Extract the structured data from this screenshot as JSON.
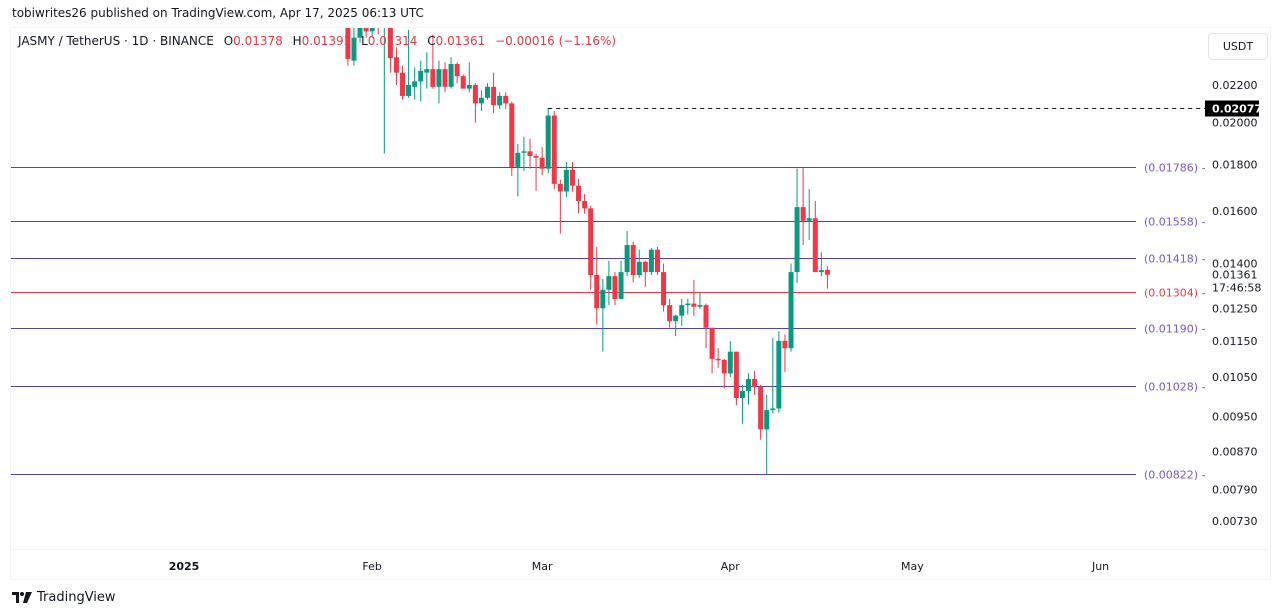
{
  "publisher_line": "tobiwrites26 published on TradingView.com, Apr 17, 2025 06:13 UTC",
  "legend": {
    "symbol": "JASMY / TetherUS · 1D · BINANCE",
    "o_label": "O",
    "o_value": "0.01378",
    "h_label": "H",
    "h_value": "0.01391",
    "l_label": "L",
    "l_value": "0.01314",
    "c_label": "C",
    "c_value": "0.01361",
    "change": "−0.00016 (−1.16%)"
  },
  "currency": "USDT",
  "footer_brand": "TradingView",
  "colors": {
    "up": "#089981",
    "down": "#f23645",
    "level_purple": "#5b3fb8",
    "level_label_purple": "#7e57c2",
    "level_red": "#f23645"
  },
  "chart_data": {
    "type": "candlestick",
    "scale": "log",
    "ylim": [
      0.0066,
      0.0255
    ],
    "price_ticks": [
      "0.02200",
      "0.02000",
      "0.01800",
      "0.01600",
      "0.01400",
      "0.01250",
      "0.01150",
      "0.01050",
      "0.00950",
      "0.00870",
      "0.00790",
      "0.00730"
    ],
    "time_ticks": [
      {
        "label": "2025",
        "day_of_year": 0
      },
      {
        "label": "Feb",
        "day_of_year": 31
      },
      {
        "label": "Mar",
        "day_of_year": 59
      },
      {
        "label": "Apr",
        "day_of_year": 90
      },
      {
        "label": "May",
        "day_of_year": 120
      },
      {
        "label": "Jun",
        "day_of_year": 151
      }
    ],
    "first_candle_day_of_year": 27,
    "ohlc_fields": [
      "open",
      "high",
      "low",
      "close"
    ],
    "candles": [
      [
        0.0262,
        0.027,
        0.0231,
        0.0235
      ],
      [
        0.0234,
        0.026,
        0.0231,
        0.0248
      ],
      [
        0.0248,
        0.027,
        0.0245,
        0.0255
      ],
      [
        0.0255,
        0.027,
        0.0248,
        0.0252
      ],
      [
        0.0252,
        0.027,
        0.0248,
        0.0258
      ],
      [
        0.0258,
        0.027,
        0.025,
        0.0255
      ],
      [
        0.0255,
        0.027,
        0.0185,
        0.0262
      ],
      [
        0.0262,
        0.027,
        0.0227,
        0.02355
      ],
      [
        0.0236,
        0.0242,
        0.022,
        0.0227
      ],
      [
        0.0227,
        0.0231,
        0.0212,
        0.0214
      ],
      [
        0.0214,
        0.0253,
        0.0213,
        0.022
      ],
      [
        0.0219,
        0.023,
        0.0212,
        0.0222
      ],
      [
        0.0222,
        0.0234,
        0.0211,
        0.0228
      ],
      [
        0.0227,
        0.0239,
        0.0218,
        0.0229
      ],
      [
        0.0229,
        0.025,
        0.0218,
        0.0219
      ],
      [
        0.0219,
        0.0234,
        0.021,
        0.0229
      ],
      [
        0.0229,
        0.0233,
        0.0216,
        0.0219
      ],
      [
        0.0219,
        0.0236,
        0.0218,
        0.0232
      ],
      [
        0.0232,
        0.0233,
        0.0221,
        0.0225
      ],
      [
        0.0225,
        0.0226,
        0.0218,
        0.0218
      ],
      [
        0.0218,
        0.0233,
        0.0216,
        0.022
      ],
      [
        0.022,
        0.0221,
        0.02,
        0.021
      ],
      [
        0.021,
        0.0217,
        0.0206,
        0.0213
      ],
      [
        0.0213,
        0.0221,
        0.0212,
        0.0219
      ],
      [
        0.0219,
        0.0227,
        0.0205,
        0.0209
      ],
      [
        0.0209,
        0.0216,
        0.0207,
        0.0214
      ],
      [
        0.0214,
        0.0216,
        0.0207,
        0.021
      ],
      [
        0.021,
        0.0211,
        0.01748,
        0.01788
      ],
      [
        0.01788,
        0.01895,
        0.0166,
        0.01853
      ],
      [
        0.01853,
        0.0193,
        0.0177,
        0.0186
      ],
      [
        0.0186,
        0.0192,
        0.0178,
        0.01838
      ],
      [
        0.01838,
        0.0185,
        0.01683,
        0.0183
      ],
      [
        0.0183,
        0.0188,
        0.0175,
        0.0178
      ],
      [
        0.0178,
        0.02077,
        0.0176,
        0.02036
      ],
      [
        0.02036,
        0.0206,
        0.0169,
        0.01713
      ],
      [
        0.01713,
        0.0173,
        0.0151,
        0.0168
      ],
      [
        0.0168,
        0.0181,
        0.01656,
        0.01774
      ],
      [
        0.01774,
        0.0181,
        0.0168,
        0.01705
      ],
      [
        0.01705,
        0.01734,
        0.0159,
        0.0164
      ],
      [
        0.0164,
        0.0167,
        0.01588,
        0.0161
      ],
      [
        0.0161,
        0.0162,
        0.0131,
        0.0136
      ],
      [
        0.0136,
        0.0146,
        0.012,
        0.0125
      ],
      [
        0.0125,
        0.01346,
        0.0112,
        0.0131
      ],
      [
        0.0131,
        0.0141,
        0.0126,
        0.01356
      ],
      [
        0.01356,
        0.0137,
        0.0126,
        0.0128
      ],
      [
        0.0128,
        0.0141,
        0.01283,
        0.0137
      ],
      [
        0.0137,
        0.0152,
        0.01356,
        0.01467
      ],
      [
        0.01467,
        0.0148,
        0.01335,
        0.0136
      ],
      [
        0.0136,
        0.0145,
        0.0135,
        0.01406
      ],
      [
        0.01406,
        0.0141,
        0.0132,
        0.0137
      ],
      [
        0.0137,
        0.01456,
        0.0136,
        0.0145
      ],
      [
        0.0145,
        0.0146,
        0.0136,
        0.0137
      ],
      [
        0.0137,
        0.014,
        0.0124,
        0.0126
      ],
      [
        0.0126,
        0.0128,
        0.0119,
        0.0121
      ],
      [
        0.0121,
        0.0123,
        0.01165,
        0.01227
      ],
      [
        0.01227,
        0.0128,
        0.01195,
        0.0126
      ],
      [
        0.0126,
        0.0128,
        0.0123,
        0.01265
      ],
      [
        0.01265,
        0.01343,
        0.01227,
        0.01255
      ],
      [
        0.01255,
        0.013,
        0.01248,
        0.0126
      ],
      [
        0.0126,
        0.01265,
        0.0113,
        0.0119
      ],
      [
        0.0119,
        0.0119,
        0.0106,
        0.011
      ],
      [
        0.011,
        0.0113,
        0.01075,
        0.01097
      ],
      [
        0.01097,
        0.011,
        0.0102,
        0.0106
      ],
      [
        0.0106,
        0.0115,
        0.0105,
        0.0112
      ],
      [
        0.0112,
        0.0112,
        0.00978,
        0.00996
      ],
      [
        0.00996,
        0.0103,
        0.00933,
        0.01014
      ],
      [
        0.01014,
        0.0106,
        0.0098,
        0.01045
      ],
      [
        0.01045,
        0.01066,
        0.01004,
        0.01024
      ],
      [
        0.01024,
        0.0103,
        0.00896,
        0.0092
      ],
      [
        0.0092,
        0.01004,
        0.00822,
        0.00966
      ],
      [
        0.00966,
        0.0116,
        0.00958,
        0.0097
      ],
      [
        0.0097,
        0.0118,
        0.0096,
        0.01151
      ],
      [
        0.01151,
        0.0117,
        0.01064,
        0.0113
      ],
      [
        0.0113,
        0.014,
        0.0112,
        0.0137
      ],
      [
        0.0137,
        0.0178,
        0.01333,
        0.01615
      ],
      [
        0.01615,
        0.01786,
        0.01467,
        0.0156
      ],
      [
        0.0156,
        0.0169,
        0.01486,
        0.0157
      ],
      [
        0.0157,
        0.0164,
        0.0137,
        0.0137
      ],
      [
        0.0137,
        0.0144,
        0.01356,
        0.01377
      ],
      [
        0.01378,
        0.01391,
        0.01314,
        0.01361
      ]
    ],
    "levels": [
      {
        "value": 0.01786,
        "label": "(0.01786)",
        "color": "purple"
      },
      {
        "value": 0.01558,
        "label": "(0.01558)",
        "color": "purple"
      },
      {
        "value": 0.01418,
        "label": "(0.01418)",
        "color": "purple"
      },
      {
        "value": 0.01304,
        "label": "(0.01304)",
        "color": "red"
      },
      {
        "value": 0.0119,
        "label": "(0.01190)",
        "color": "purple"
      },
      {
        "value": 0.01028,
        "label": "(0.01028)",
        "color": "purple"
      },
      {
        "value": 0.00822,
        "label": "(0.00822)",
        "color": "purple"
      }
    ],
    "high_marker": {
      "value": 0.02077,
      "label": "0.02077",
      "from_candle": 33
    },
    "last_price": {
      "label": "0.01361",
      "countdown": "17:46:58"
    }
  }
}
